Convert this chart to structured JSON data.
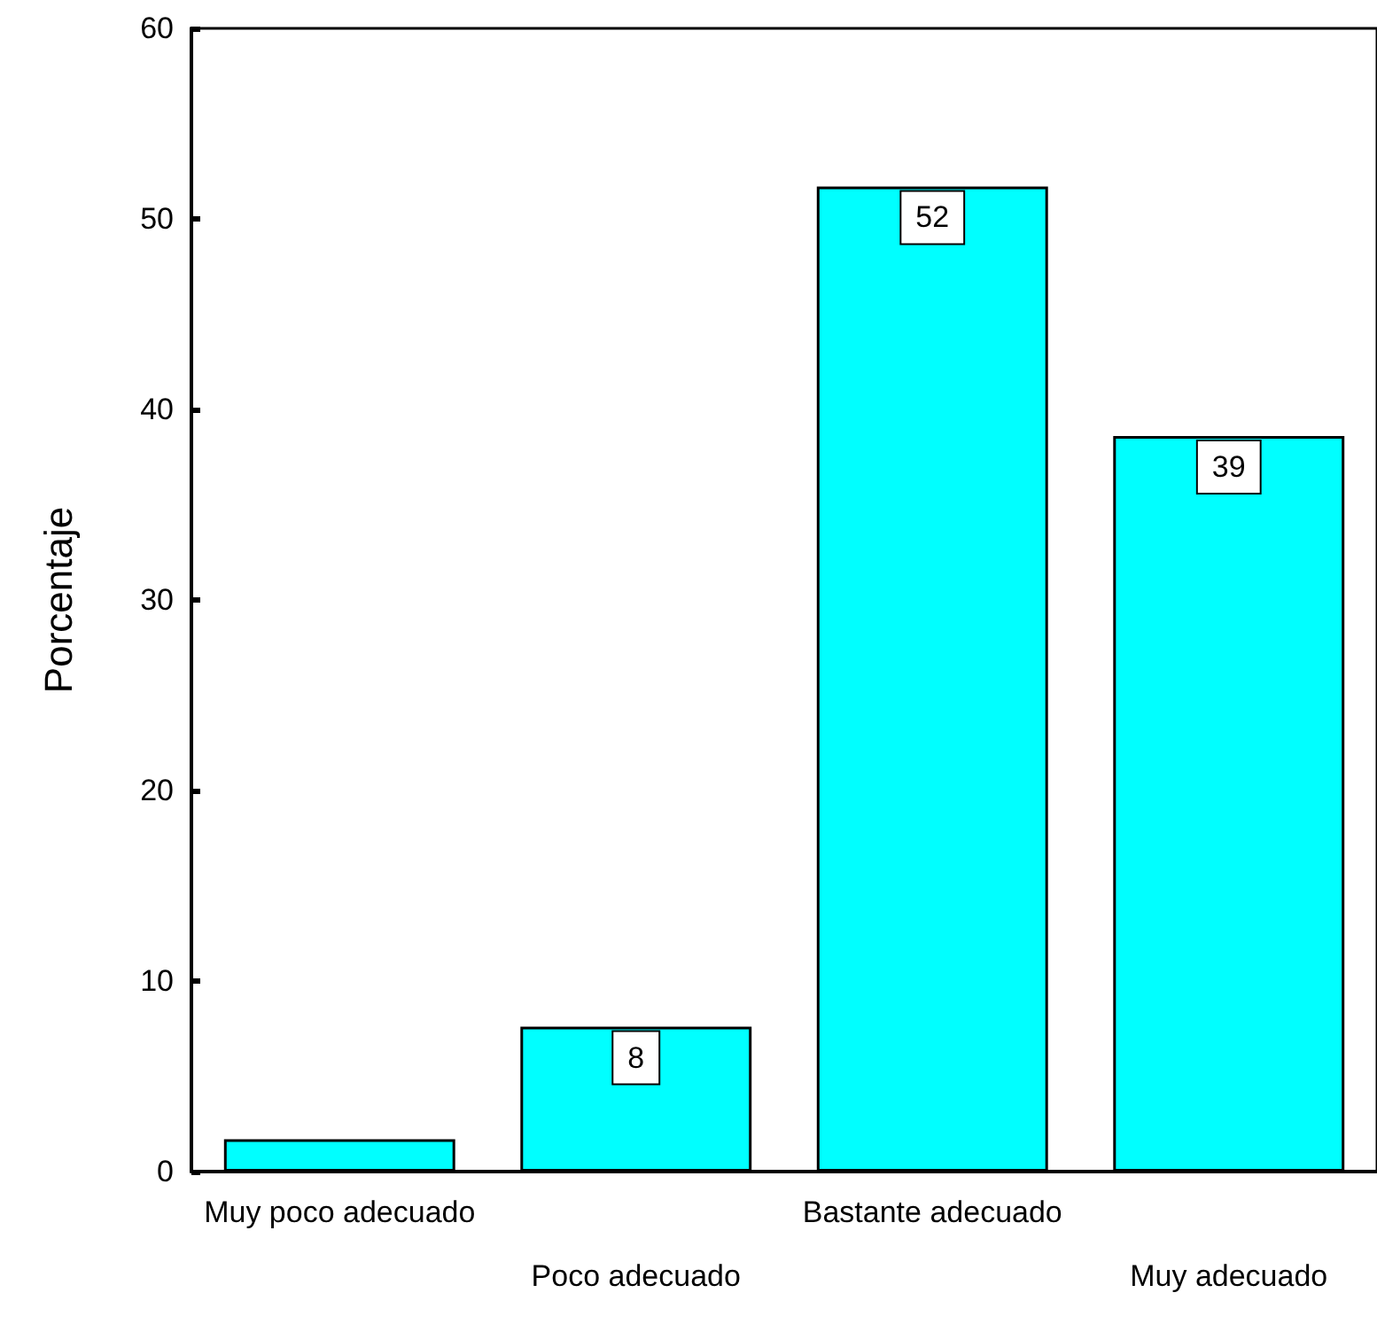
{
  "chart_data": {
    "type": "bar",
    "ylabel": "Porcentaje",
    "categories": [
      "Muy poco adecuado",
      "Poco adecuado",
      "Bastante adecuado",
      "Muy adecuado"
    ],
    "values": [
      1.7,
      7.6,
      51.7,
      38.6
    ],
    "value_labels": [
      null,
      "8",
      "52",
      "39"
    ],
    "color": "#00ffff",
    "ylim": [
      0,
      60
    ],
    "yticks": [
      0,
      10,
      20,
      30,
      40,
      50,
      60
    ],
    "grid": false
  }
}
